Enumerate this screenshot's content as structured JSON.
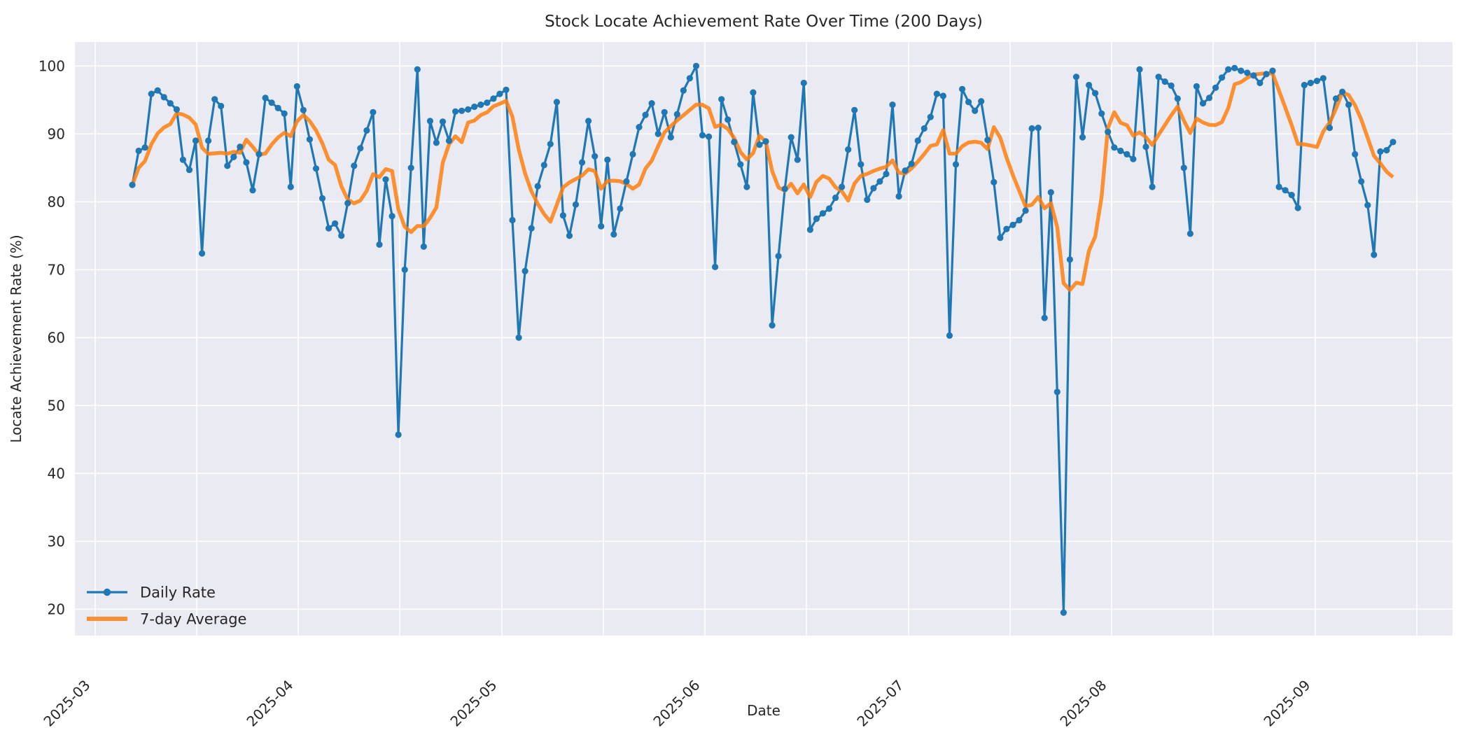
{
  "figure": {
    "title": "Stock Locate Achievement Rate Over Time (200 Days)",
    "xlabel": "Date",
    "ylabel": "Locate Achievement Rate (%)"
  },
  "legend": {
    "items": [
      {
        "label": "Daily Rate",
        "color": "#1f77b4",
        "style": "line-with-marker"
      },
      {
        "label": "7-day Average",
        "color": "#ff7f0e",
        "style": "thick-line"
      }
    ]
  },
  "colors": {
    "daily_line": "#1f77b4",
    "average_line": "#ff7f0e",
    "average_opacity": 0.85,
    "axes_background": "#eaeaf2",
    "gridline": "#ffffff",
    "text": "#262626",
    "figure_background": "#ffffff"
  },
  "chart_data": {
    "type": "line",
    "title": "Stock Locate Achievement Rate Over Time (200 Days)",
    "xlabel": "Date",
    "ylabel": "Locate Achievement Rate (%)",
    "x_unit": "day",
    "x_start_date": "2025-03-01",
    "n_points": 200,
    "ylim": [
      16,
      103.5
    ],
    "y_ticks": [
      20,
      30,
      40,
      50,
      60,
      70,
      80,
      90,
      100
    ],
    "x_tick_labels": [
      "2025-03",
      "2025-04",
      "2025-05",
      "2025-06",
      "2025-07",
      "2025-08",
      "2025-09"
    ],
    "grid": true,
    "legend_position": "lower-left",
    "series": [
      {
        "name": "Daily Rate",
        "values": [
          82.5,
          87.5,
          88.0,
          95.9,
          96.4,
          95.4,
          94.5,
          93.6,
          86.2,
          84.7,
          89.0,
          72.4,
          89.0,
          95.1,
          94.1,
          85.3,
          86.6,
          88.1,
          85.8,
          81.7,
          87.0,
          95.3,
          94.6,
          93.8,
          93.0,
          82.2,
          97.0,
          93.5,
          89.2,
          84.9,
          80.5,
          76.1,
          76.8,
          75.0,
          79.8,
          85.3,
          87.9,
          90.5,
          93.2,
          73.7,
          83.3,
          77.9,
          45.7,
          70.0,
          85.0,
          99.5,
          73.4,
          91.9,
          88.7,
          91.8,
          89.0,
          93.3,
          93.4,
          93.6,
          94.0,
          94.3,
          94.6,
          95.2,
          95.9,
          96.5,
          77.3,
          60.0,
          69.8,
          76.1,
          82.3,
          85.4,
          88.5,
          94.7,
          78.0,
          75.0,
          79.6,
          85.8,
          91.9,
          86.7,
          76.4,
          86.2,
          75.2,
          79.0,
          83.0,
          87.0,
          91.0,
          92.8,
          94.5,
          90.0,
          93.2,
          89.5,
          92.9,
          96.4,
          98.2,
          100.0,
          89.8,
          89.6,
          70.4,
          95.1,
          92.1,
          88.8,
          85.5,
          82.2,
          96.1,
          88.4,
          88.9,
          61.8,
          72.0,
          81.9,
          89.5,
          86.2,
          97.5,
          75.9,
          77.5,
          78.3,
          79.0,
          80.6,
          82.2,
          87.7,
          93.5,
          85.5,
          80.3,
          82.0,
          83.0,
          84.1,
          94.3,
          80.8,
          84.6,
          85.6,
          89.0,
          90.8,
          92.5,
          95.9,
          95.6,
          60.3,
          85.5,
          96.6,
          94.7,
          93.4,
          94.8,
          89.1,
          82.9,
          74.7,
          76.0,
          76.6,
          77.3,
          78.7,
          90.8,
          90.9,
          62.9,
          81.4,
          52.0,
          19.5,
          71.5,
          98.4,
          89.5,
          97.2,
          96.0,
          93.0,
          90.3,
          88.0,
          87.5,
          87.0,
          86.3,
          99.5,
          88.1,
          82.2,
          98.4,
          97.7,
          97.1,
          95.2,
          85.0,
          75.3,
          97.0,
          94.5,
          95.3,
          96.8,
          98.3,
          99.5,
          99.7,
          99.3,
          99.0,
          98.6,
          97.5,
          98.8,
          99.3,
          82.2,
          81.7,
          81.0,
          79.1,
          97.2,
          97.5,
          97.8,
          98.2,
          90.9,
          95.2,
          96.2,
          94.3,
          87.0,
          83.0,
          79.5,
          72.2,
          87.4,
          87.6,
          88.8
        ]
      },
      {
        "name": "7-day Average",
        "derived_from": "Daily Rate",
        "derivation": "rolling_mean",
        "window": 7,
        "min_periods": 1
      }
    ]
  }
}
